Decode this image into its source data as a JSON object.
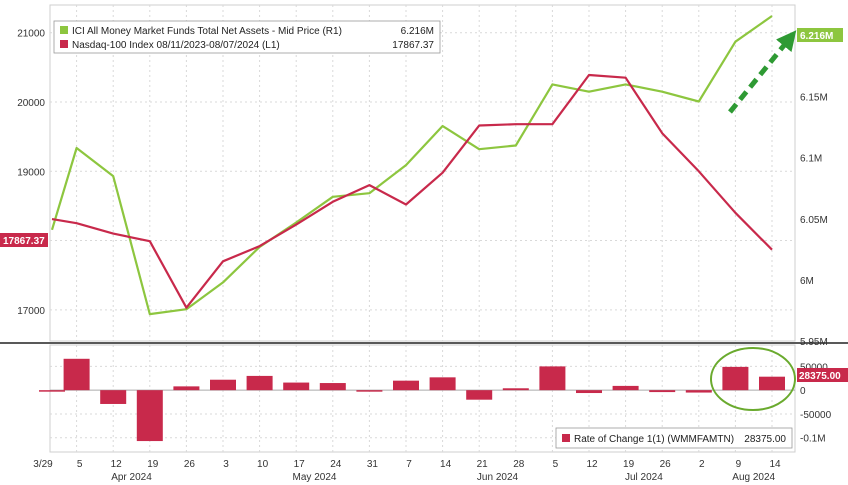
{
  "chart_data": [
    {
      "type": "line",
      "x": [
        "2024-03-29",
        "2024-04-05",
        "2024-04-12",
        "2024-04-19",
        "2024-04-26",
        "2024-05-03",
        "2024-05-10",
        "2024-05-17",
        "2024-05-24",
        "2024-05-31",
        "2024-06-07",
        "2024-06-14",
        "2024-06-21",
        "2024-06-28",
        "2024-07-05",
        "2024-07-12",
        "2024-07-19",
        "2024-07-26",
        "2024-08-02",
        "2024-08-09",
        "2024-08-14"
      ],
      "series": [
        {
          "name": "ICI All Money Market Funds Total Net Assets - Mid Price (R1)",
          "axis": "right",
          "color": "#8dc63f",
          "last_label": "6.216M",
          "values": [
            6.041,
            6.108,
            6.085,
            5.972,
            5.976,
            5.998,
            6.027,
            6.047,
            6.068,
            6.071,
            6.094,
            6.126,
            6.107,
            6.11,
            6.16,
            6.154,
            6.16,
            6.154,
            6.146,
            6.195,
            6.216
          ]
        },
        {
          "name": "Nasdaq-100 Index 08/11/2023-08/07/2024 (L1)",
          "axis": "left",
          "color": "#c8294b",
          "last_label": "17867.37",
          "values": [
            18310,
            18250,
            18100,
            17990,
            17030,
            17700,
            17920,
            18230,
            18560,
            18800,
            18520,
            18980,
            19660,
            19680,
            19680,
            20390,
            20350,
            19550,
            19000,
            18400,
            17867.37
          ]
        }
      ],
      "ylim_left": [
        16550,
        21400
      ],
      "ylim_right": [
        5.95,
        6.225
      ],
      "yticks_left": [
        "17000",
        "18000",
        "19000",
        "20000",
        "21000"
      ],
      "yticks_right": [
        "5.95M",
        "6M",
        "6.05M",
        "6.1M",
        "6.15M",
        "6.2M"
      ],
      "right_axis_current": "6.216M",
      "left_axis_current": "17867.37",
      "annotation": "dashed green arrow pointing up to the right",
      "legend_placement": "top-left"
    },
    {
      "type": "bar",
      "x": [
        "2024-03-29",
        "2024-04-05",
        "2024-04-12",
        "2024-04-19",
        "2024-04-26",
        "2024-05-03",
        "2024-05-10",
        "2024-05-17",
        "2024-05-24",
        "2024-05-31",
        "2024-06-07",
        "2024-06-14",
        "2024-06-21",
        "2024-06-28",
        "2024-07-05",
        "2024-07-12",
        "2024-07-19",
        "2024-07-26",
        "2024-08-02",
        "2024-08-09",
        "2024-08-14"
      ],
      "series": [
        {
          "name": "Rate of Change 1(1) (WMMFAMTN)",
          "color": "#c8294b",
          "last_label": "28375.00",
          "values": [
            -2000,
            66000,
            -29000,
            -107000,
            8000,
            22000,
            30000,
            16000,
            15000,
            -2000,
            20000,
            27000,
            -20000,
            4000,
            50000,
            -6000,
            9000,
            -4000,
            -5000,
            49000,
            28375
          ]
        }
      ],
      "ylim": [
        -130000,
        95000
      ],
      "yticks": [
        "50000",
        "0",
        "-50000",
        "-0.1M"
      ],
      "right_axis_current": "28375.00",
      "annotation": "green ellipse around the last two bars",
      "legend_placement": "bottom-right"
    }
  ],
  "x_axis": {
    "week_labels": [
      "3/29",
      "5",
      "12",
      "19",
      "26",
      "3",
      "10",
      "17",
      "24",
      "31",
      "7",
      "14",
      "21",
      "28",
      "5",
      "12",
      "19",
      "26",
      "2",
      "9",
      "14"
    ],
    "month_labels": [
      "Apr 2024",
      "May 2024",
      "Jun 2024",
      "Jul 2024",
      "Aug 2024"
    ]
  },
  "legend": {
    "entries": [
      {
        "label": "ICI All Money Market Funds Total Net Assets - Mid Price (R1)",
        "value": "6.216M",
        "color": "#8dc63f"
      },
      {
        "label": "Nasdaq-100 Index 08/11/2023-08/07/2024 (L1)",
        "value": "17867.37",
        "color": "#c8294b"
      }
    ],
    "lower_label": "Rate of Change 1(1) (WMMFAMTN)",
    "lower_value": "28375.00"
  },
  "colors": {
    "green": "#8dc63f",
    "red": "#c8294b",
    "arrow": "#2e9a33",
    "grid": "#d9d9d9",
    "axis_text": "#333333"
  }
}
